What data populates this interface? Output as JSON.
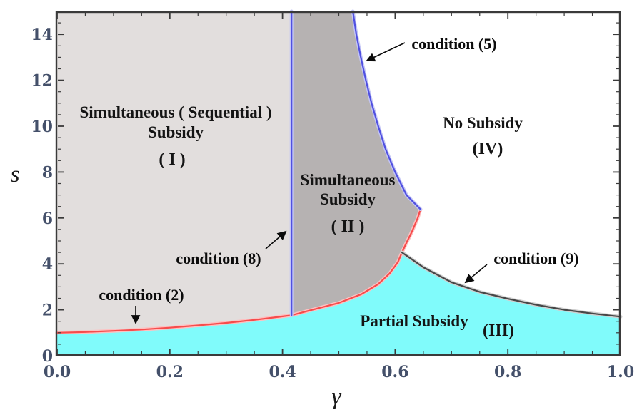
{
  "labels": {
    "r1_line1": "Simultaneous ( Sequential )",
    "r1_line2": "Subsidy",
    "r1_tag": "( I )",
    "r2_line1": "Simultaneous",
    "r2_line2": "Subsidy",
    "r2_tag": "( II )",
    "r3": "Partial Subsidy",
    "r3_tag": "(III)",
    "r4": "No Subsidy",
    "r4_tag": "(IV)",
    "c2": "condition (2)",
    "c5": "condition (5)",
    "c8": "condition (8)",
    "c9": "condition (9)",
    "xlabel": "γ",
    "ylabel": "s"
  },
  "colors": {
    "region_I_fill": "#e2dedd",
    "region_II_fill": "#b6b2b2",
    "region_III_fill": "#80fbfb",
    "region_IV_fill": "#ffffff",
    "red_boundary": "#f64c4c",
    "blue_boundary": "#5050e0",
    "black_boundary": "#474747",
    "frame": "#3a3a3a",
    "tick_label": "#44506a"
  },
  "chart_data": {
    "type": "area",
    "title": "",
    "xlabel": "γ",
    "ylabel": "s",
    "xlim": [
      0,
      1
    ],
    "ylim": [
      0,
      15
    ],
    "grid": false,
    "x_ticks": {
      "values": [
        0,
        0.2,
        0.4,
        0.6,
        0.8,
        1.0
      ],
      "labels": [
        "0.0",
        "0.2",
        "0.4",
        "0.6",
        "0.8",
        "1.0"
      ],
      "minor_step": 0.05
    },
    "y_ticks": {
      "values": [
        0,
        2,
        4,
        6,
        8,
        10,
        12,
        14
      ],
      "labels": [
        "0",
        "2",
        "4",
        "6",
        "8",
        "10",
        "12",
        "14"
      ],
      "minor_step": 0.5
    },
    "regions": [
      {
        "id": "I",
        "label": "Simultaneous ( Sequential ) Subsidy",
        "tag": "( I )",
        "fill": "#e2dedd",
        "polygon": [
          [
            0,
            15
          ],
          [
            0.416,
            15
          ],
          [
            0.416,
            1.76
          ],
          [
            0.4,
            1.71
          ],
          [
            0.35,
            1.56
          ],
          [
            0.3,
            1.43
          ],
          [
            0.25,
            1.32
          ],
          [
            0.2,
            1.22
          ],
          [
            0.15,
            1.14
          ],
          [
            0.1,
            1.08
          ],
          [
            0.05,
            1.03
          ],
          [
            0,
            1.0
          ]
        ]
      },
      {
        "id": "II",
        "label": "Simultaneous Subsidy",
        "tag": "( II )",
        "fill": "#b6b2b2",
        "polygon": [
          [
            0.416,
            15
          ],
          [
            0.525,
            15
          ],
          [
            0.531,
            14
          ],
          [
            0.539,
            13
          ],
          [
            0.548,
            12
          ],
          [
            0.558,
            11
          ],
          [
            0.57,
            10
          ],
          [
            0.583,
            9
          ],
          [
            0.6,
            8
          ],
          [
            0.62,
            7
          ],
          [
            0.645,
            6.38
          ],
          [
            0.64,
            6.0
          ],
          [
            0.63,
            5.42
          ],
          [
            0.62,
            4.92
          ],
          [
            0.612,
            4.5
          ],
          [
            0.605,
            4.08
          ],
          [
            0.59,
            3.58
          ],
          [
            0.57,
            3.12
          ],
          [
            0.54,
            2.68
          ],
          [
            0.5,
            2.3
          ],
          [
            0.45,
            1.98
          ],
          [
            0.416,
            1.76
          ]
        ]
      },
      {
        "id": "III",
        "label": "Partial Subsidy",
        "tag": "(III)",
        "fill": "#80fbfb",
        "polygon": [
          [
            0,
            1.0
          ],
          [
            0.05,
            1.03
          ],
          [
            0.1,
            1.08
          ],
          [
            0.15,
            1.14
          ],
          [
            0.2,
            1.22
          ],
          [
            0.25,
            1.32
          ],
          [
            0.3,
            1.43
          ],
          [
            0.35,
            1.56
          ],
          [
            0.4,
            1.71
          ],
          [
            0.416,
            1.76
          ],
          [
            0.45,
            1.98
          ],
          [
            0.5,
            2.3
          ],
          [
            0.54,
            2.68
          ],
          [
            0.57,
            3.12
          ],
          [
            0.59,
            3.58
          ],
          [
            0.605,
            4.08
          ],
          [
            0.612,
            4.5
          ],
          [
            0.65,
            3.85
          ],
          [
            0.7,
            3.2
          ],
          [
            0.75,
            2.78
          ],
          [
            0.8,
            2.48
          ],
          [
            0.85,
            2.22
          ],
          [
            0.9,
            2.0
          ],
          [
            0.95,
            1.84
          ],
          [
            1.0,
            1.7
          ],
          [
            1.0,
            0
          ],
          [
            0,
            0
          ]
        ]
      },
      {
        "id": "IV",
        "label": "No Subsidy",
        "tag": "(IV)",
        "fill": "#ffffff",
        "polygon": null
      }
    ],
    "boundaries": [
      {
        "id": "condition-2-curve",
        "condition": "condition (2)",
        "color": "#f64c4c",
        "halo": "#ffc0c0",
        "points": [
          [
            0,
            1.0
          ],
          [
            0.05,
            1.03
          ],
          [
            0.1,
            1.08
          ],
          [
            0.15,
            1.14
          ],
          [
            0.2,
            1.22
          ],
          [
            0.25,
            1.32
          ],
          [
            0.3,
            1.43
          ],
          [
            0.35,
            1.56
          ],
          [
            0.4,
            1.71
          ],
          [
            0.416,
            1.76
          ],
          [
            0.45,
            1.98
          ],
          [
            0.5,
            2.3
          ],
          [
            0.54,
            2.68
          ],
          [
            0.57,
            3.12
          ],
          [
            0.59,
            3.58
          ],
          [
            0.605,
            4.08
          ],
          [
            0.612,
            4.5
          ],
          [
            0.62,
            4.92
          ],
          [
            0.63,
            5.42
          ],
          [
            0.64,
            6.0
          ],
          [
            0.645,
            6.38
          ]
        ]
      },
      {
        "id": "condition-8-line",
        "condition": "condition (8)",
        "color": "#5050e0",
        "halo": "#c3c5f6",
        "points": [
          [
            0.416,
            1.76
          ],
          [
            0.416,
            15
          ]
        ]
      },
      {
        "id": "condition-5-curve",
        "condition": "condition (5)",
        "color": "#5050e0",
        "halo": "#c3c5f6",
        "points": [
          [
            0.525,
            15
          ],
          [
            0.531,
            14
          ],
          [
            0.539,
            13
          ],
          [
            0.548,
            12
          ],
          [
            0.558,
            11
          ],
          [
            0.57,
            10
          ],
          [
            0.583,
            9
          ],
          [
            0.6,
            8
          ],
          [
            0.62,
            7
          ],
          [
            0.645,
            6.38
          ]
        ]
      },
      {
        "id": "condition-9-curve",
        "condition": "condition (9)",
        "color": "#474747",
        "halo": "#cfcfcf",
        "points": [
          [
            0.612,
            4.5
          ],
          [
            0.65,
            3.85
          ],
          [
            0.7,
            3.2
          ],
          [
            0.75,
            2.78
          ],
          [
            0.8,
            2.48
          ],
          [
            0.85,
            2.22
          ],
          [
            0.9,
            2.0
          ],
          [
            0.95,
            1.84
          ],
          [
            1.0,
            1.7
          ]
        ]
      }
    ],
    "legend": null
  }
}
